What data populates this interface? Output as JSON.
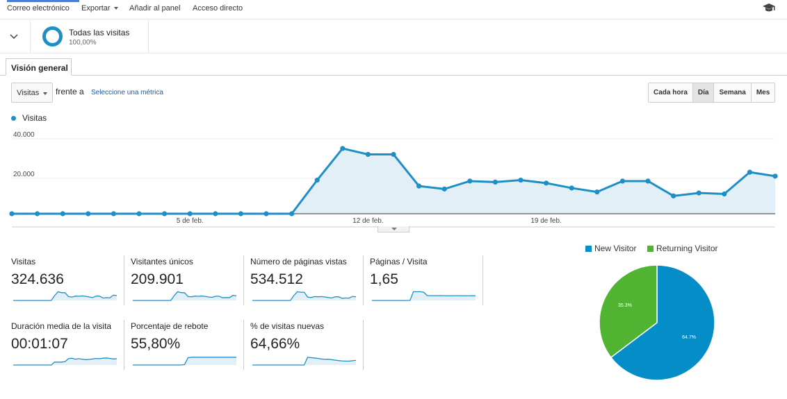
{
  "topbar": {
    "email": "Correo electrónico",
    "export": "Exportar",
    "add_to_dashboard": "Añadir al panel",
    "shortcut": "Acceso directo",
    "icon": "graduation-cap-icon"
  },
  "segment": {
    "name": "Todas las visitas",
    "percent": "100,00%",
    "icon": "chevron-down-icon"
  },
  "tab": {
    "label": "Visión general"
  },
  "controls": {
    "metric": "Visitas",
    "versus": "frente a",
    "select_metric": "Seleccione una métrica",
    "granularity": [
      "Cada hora",
      "Día",
      "Semana",
      "Mes"
    ],
    "active_granularity": "Día"
  },
  "legend": {
    "label": "Visitas",
    "color": "#1e8fc6"
  },
  "chart_data": {
    "type": "area",
    "series": [
      {
        "name": "Visitas",
        "values": [
          0,
          0,
          0,
          0,
          0,
          0,
          0,
          0,
          0,
          0,
          0,
          0,
          17000,
          33000,
          30000,
          30000,
          14000,
          12500,
          16500,
          16000,
          17000,
          15500,
          13000,
          11000,
          16500,
          16500,
          9000,
          10500,
          10000,
          21000,
          19000
        ]
      }
    ],
    "x_labels": [
      "5 de feb.",
      "12 de feb.",
      "19 de feb."
    ],
    "x_label_indices": [
      7,
      14,
      21
    ],
    "y_ticks": [
      "40.000",
      "20.000"
    ],
    "y_tick_values": [
      40000,
      20000
    ],
    "ylim": [
      0,
      40000
    ],
    "grid": true,
    "color": "#1e8fc6",
    "fill": "#e3eff6"
  },
  "metrics": [
    {
      "label": "Visitas",
      "value": "324.636",
      "spark": [
        0,
        0,
        0,
        0,
        0,
        0,
        0,
        0,
        0,
        0,
        0,
        0,
        5,
        9,
        8,
        8,
        4,
        3.5,
        4.5,
        4.4,
        4.7,
        4.3,
        3.6,
        3,
        4.5,
        4.5,
        2.5,
        2.9,
        2.7,
        5.5,
        5
      ]
    },
    {
      "label": "Visitantes únicos",
      "value": "209.901",
      "spark": [
        0,
        0,
        0,
        0,
        0,
        0,
        0,
        0,
        0,
        0,
        0,
        0,
        5,
        9,
        8,
        8,
        4,
        3.8,
        4.5,
        4.3,
        4.6,
        4.2,
        3.6,
        3.2,
        4.4,
        4.4,
        2.8,
        3,
        2.9,
        5.2,
        4.8
      ]
    },
    {
      "label": "Número de páginas vistas",
      "value": "534.512",
      "spark": [
        0,
        0,
        0,
        0,
        0,
        0,
        0,
        0,
        0,
        0,
        0,
        0,
        5,
        9,
        8.5,
        8.5,
        3.5,
        3,
        4,
        3.8,
        4,
        3.6,
        3,
        2.6,
        3.8,
        3.8,
        2.2,
        2.6,
        2.4,
        4.2,
        3.8
      ]
    },
    {
      "label": "Páginas / Visita",
      "value": "1,65",
      "spark": [
        0,
        0,
        0,
        0,
        0,
        0,
        0,
        0,
        0,
        0,
        0,
        0,
        9,
        9,
        9,
        8.5,
        5,
        4.8,
        5,
        4.9,
        5,
        4.9,
        4.8,
        4.8,
        4.9,
        4.9,
        4.8,
        4.8,
        4.8,
        4.9,
        4.8
      ]
    },
    {
      "label": "Duración media de la visita",
      "value": "00:01:07",
      "spark": [
        0,
        0,
        0,
        0,
        0,
        0,
        0,
        0,
        0,
        0,
        0,
        0,
        3,
        3,
        3,
        3.5,
        6.5,
        7,
        6,
        6.5,
        6,
        5.5,
        5.8,
        6.2,
        6.8,
        6.5,
        7,
        7.2,
        6.8,
        6.2,
        6.5
      ]
    },
    {
      "label": "Porcentaje de rebote",
      "value": "55,80%",
      "spark": [
        0,
        0,
        0,
        0,
        0,
        0,
        0,
        0,
        0,
        0,
        0,
        0,
        0,
        0,
        0,
        0.5,
        7.5,
        8,
        8,
        8,
        8,
        8,
        8,
        8,
        8,
        8,
        8,
        8,
        8,
        8,
        8
      ]
    },
    {
      "label": "% de visitas nuevas",
      "value": "64,66%",
      "spark": [
        0,
        0,
        0,
        0,
        0,
        0,
        0,
        0,
        0,
        0,
        0,
        0,
        0,
        0,
        0,
        0,
        8,
        7.6,
        7.2,
        6.8,
        6.2,
        5.9,
        6,
        5.5,
        5,
        4.5,
        4.2,
        4,
        4,
        4.4,
        4.8
      ]
    }
  ],
  "pie": {
    "legend": [
      "New Visitor",
      "Returning Visitor"
    ],
    "values": [
      64.7,
      35.3
    ],
    "labels": [
      "64.7%",
      "35.3%"
    ],
    "colors": [
      "#058dc7",
      "#50b432"
    ]
  }
}
